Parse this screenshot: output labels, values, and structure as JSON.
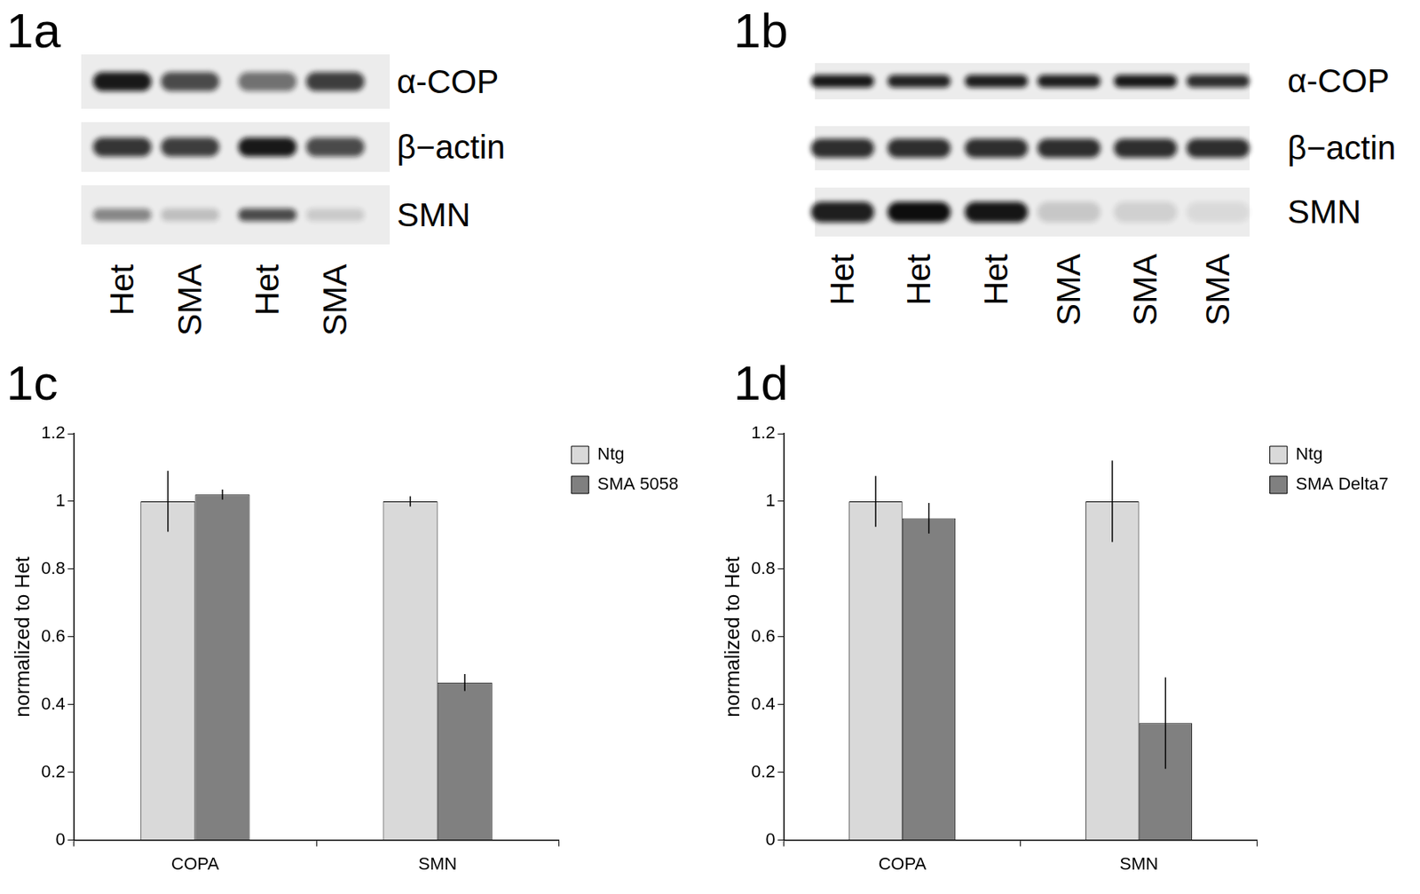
{
  "blots": [
    {
      "label": "1a",
      "rows": [
        "α-COP",
        "β−actin",
        "SMN"
      ],
      "lanes": [
        "Het",
        "SMA",
        "Het",
        "SMA"
      ]
    },
    {
      "label": "1b",
      "rows": [
        "α-COP",
        "β−actin",
        "SMN"
      ],
      "lanes": [
        "Het",
        "Het",
        "Het",
        "SMA",
        "SMA",
        "SMA"
      ]
    }
  ],
  "chart_data": [
    {
      "label": "1c",
      "type": "bar",
      "categories": [
        "COPA",
        "SMN"
      ],
      "y_label": "normalized to Het",
      "series": [
        {
          "name": "Ntg",
          "color": "#d9d9d9",
          "values": [
            1,
            1
          ],
          "errors": [
            0.09,
            0.015
          ]
        },
        {
          "name": "SMA 5058",
          "color": "#808080",
          "values": [
            1.02,
            0.465
          ],
          "errors": [
            0.015,
            0.025
          ]
        }
      ],
      "ylim": [
        0,
        1.2
      ],
      "yticks": [
        0,
        0.2,
        0.4,
        0.6,
        0.8,
        1,
        1.2
      ],
      "grid": false,
      "legend": "right"
    },
    {
      "label": "1d",
      "type": "bar",
      "categories": [
        "COPA",
        "SMN"
      ],
      "y_label": "normalized to Het",
      "series": [
        {
          "name": "Ntg",
          "color": "#d9d9d9",
          "values": [
            1,
            1
          ],
          "errors": [
            0.075,
            0.12
          ]
        },
        {
          "name": "SMA Delta7",
          "color": "#808080",
          "values": [
            0.95,
            0.345
          ],
          "errors": [
            0.045,
            0.135
          ]
        }
      ],
      "ylim": [
        0,
        1.2
      ],
      "yticks": [
        0,
        0.2,
        0.4,
        0.6,
        0.8,
        1,
        1.2
      ],
      "grid": false,
      "legend": "right"
    }
  ]
}
